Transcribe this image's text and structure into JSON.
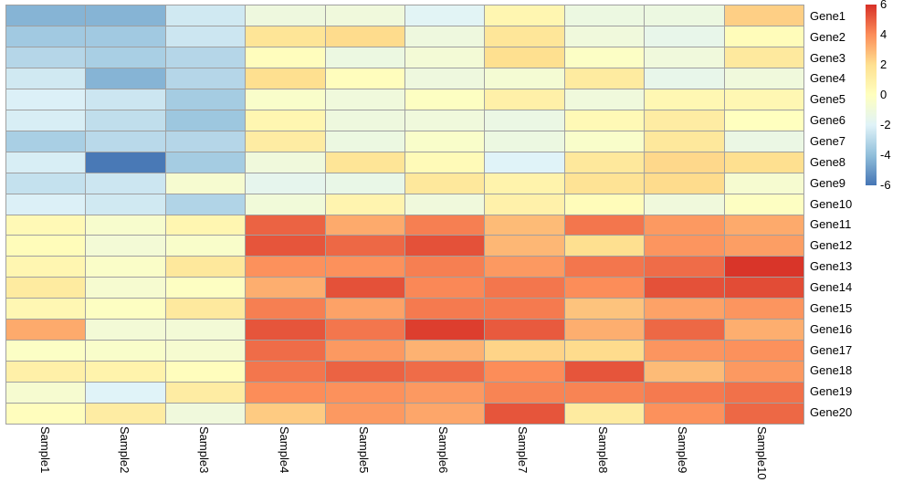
{
  "chart_data": {
    "type": "heatmap",
    "title": "",
    "rows": [
      "Gene1",
      "Gene2",
      "Gene3",
      "Gene4",
      "Gene5",
      "Gene6",
      "Gene7",
      "Gene8",
      "Gene9",
      "Gene10",
      "Gene11",
      "Gene12",
      "Gene13",
      "Gene14",
      "Gene15",
      "Gene16",
      "Gene17",
      "Gene18",
      "Gene19",
      "Gene20"
    ],
    "columns": [
      "Sample1",
      "Sample2",
      "Sample3",
      "Sample4",
      "Sample5",
      "Sample6",
      "Sample7",
      "Sample8",
      "Sample9",
      "Sample10"
    ],
    "values": [
      [
        -4.3,
        -4.3,
        -2.4,
        -1.1,
        -1.0,
        -1.9,
        0.6,
        -1.2,
        -1.2,
        2.4
      ],
      [
        -3.6,
        -3.6,
        -2.5,
        1.7,
        2.1,
        -1.1,
        1.6,
        -1.0,
        -1.5,
        0.2
      ],
      [
        -3.1,
        -3.4,
        -3.1,
        0.1,
        -1.2,
        -0.8,
        2.0,
        -0.2,
        -1.0,
        1.4
      ],
      [
        -2.4,
        -4.3,
        -3.1,
        2.0,
        0.1,
        -1.1,
        -0.7,
        1.3,
        -1.5,
        -1.0
      ],
      [
        -2.1,
        -2.5,
        -3.5,
        -0.4,
        -1.0,
        -0.1,
        1.0,
        -1.0,
        0.5,
        0.5
      ],
      [
        -2.2,
        -2.8,
        -3.7,
        0.6,
        -1.1,
        -1.0,
        -1.3,
        0.4,
        1.2,
        0.0
      ],
      [
        -3.4,
        -3.0,
        -3.1,
        1.2,
        -1.2,
        -0.4,
        -1.2,
        -0.4,
        1.5,
        -1.3
      ],
      [
        -2.2,
        -5.9,
        -3.5,
        -1.0,
        1.7,
        0.3,
        -2.0,
        1.5,
        2.2,
        2.0
      ],
      [
        -2.7,
        -2.5,
        -0.6,
        -1.6,
        -1.4,
        1.5,
        0.8,
        1.8,
        2.1,
        -0.6
      ],
      [
        -2.1,
        -2.4,
        -3.2,
        -0.9,
        0.7,
        -1.0,
        0.9,
        0.2,
        -1.0,
        -0.1
      ],
      [
        0.4,
        -0.5,
        0.6,
        4.9,
        3.3,
        4.3,
        2.9,
        4.5,
        3.7,
        3.3
      ],
      [
        0.2,
        -0.8,
        -0.4,
        5.2,
        4.8,
        5.3,
        3.0,
        2.0,
        3.8,
        3.6
      ],
      [
        0.6,
        -0.3,
        1.5,
        3.9,
        3.9,
        4.3,
        3.7,
        4.5,
        4.7,
        5.9
      ],
      [
        1.3,
        -0.6,
        -0.1,
        3.2,
        5.3,
        4.1,
        4.5,
        4.0,
        5.3,
        5.4
      ],
      [
        0.5,
        -0.1,
        1.4,
        4.3,
        3.5,
        4.4,
        4.4,
        2.7,
        3.5,
        3.8
      ],
      [
        3.3,
        -0.8,
        -0.8,
        5.2,
        4.5,
        5.7,
        5.1,
        3.2,
        4.8,
        3.2
      ],
      [
        -0.2,
        -0.4,
        -0.6,
        4.7,
        3.7,
        3.1,
        2.3,
        2.1,
        3.8,
        3.9
      ],
      [
        1.0,
        0.8,
        0.1,
        4.5,
        4.9,
        4.7,
        4.0,
        5.2,
        2.9,
        3.7
      ],
      [
        -0.6,
        -2.0,
        1.2,
        4.0,
        3.9,
        3.7,
        4.2,
        4.2,
        4.4,
        4.6
      ],
      [
        0.1,
        1.2,
        -1.0,
        2.5,
        3.7,
        3.4,
        5.2,
        1.3,
        3.9,
        4.8
      ]
    ],
    "value_range": [
      -6,
      6
    ],
    "grid_on": true,
    "grid_color": "#a0a0a0",
    "legend_position": "right",
    "colorbar": {
      "tick_labels": [
        "6",
        "4",
        "2",
        "0",
        "-2",
        "-4",
        "-6"
      ],
      "tick_values": [
        6,
        4,
        2,
        0,
        -2,
        -4,
        -6
      ]
    },
    "colormap": {
      "name": "RdYlBu_r",
      "stops": [
        {
          "value": -6,
          "color": "#4575b4"
        },
        {
          "value": -4,
          "color": "#91bfdb"
        },
        {
          "value": -2,
          "color": "#e0f3f8"
        },
        {
          "value": 0,
          "color": "#ffffbf"
        },
        {
          "value": 2,
          "color": "#fee090"
        },
        {
          "value": 4,
          "color": "#fc8d59"
        },
        {
          "value": 6,
          "color": "#d73027"
        }
      ]
    }
  }
}
